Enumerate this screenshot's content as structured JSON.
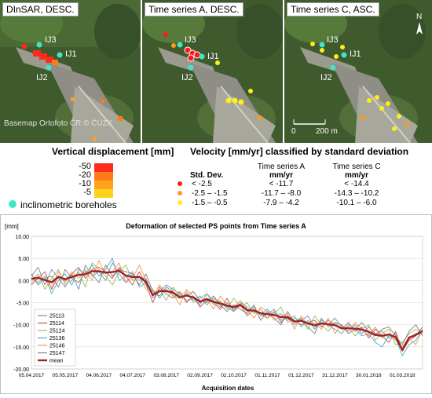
{
  "maps": [
    {
      "title": "DInSAR, DESC.",
      "boreholes": [
        "IJ3",
        "IJ1",
        "IJ2"
      ],
      "basemap": "Basemap Ortofoto ČR © ČÚZK"
    },
    {
      "title": "Time series A, DESC.",
      "boreholes": [
        "IJ3",
        "IJ1",
        "IJ2"
      ]
    },
    {
      "title": "Time series C, ASC.",
      "boreholes": [
        "IJ3",
        "IJ1",
        "IJ2"
      ],
      "scale_label": "200 m",
      "scale_zero": "0",
      "north": "N"
    }
  ],
  "vertical_legend": {
    "title": "Vertical displacement [mm]",
    "values": [
      "-50",
      "-20",
      "-10",
      "-5"
    ],
    "colors": [
      "#ff2a1a",
      "#ff7a1a",
      "#ffa31f",
      "#ffd21a"
    ],
    "borehole_label": "inclinometric boreholes",
    "borehole_color": "#3ee6c8"
  },
  "velocity_legend": {
    "title": "Velocity [mm/yr] classified by standard deviation",
    "col_std": "Std. Dev.",
    "col_a": "Time series A",
    "col_c": "Time series C",
    "unit_a": "mm/yr",
    "unit_c": "mm/yr",
    "rows": [
      {
        "color": "#ff1a1a",
        "std": "< -2.5",
        "a": "< -11.7",
        "c": "< -14.4"
      },
      {
        "color": "#ff9a1a",
        "std": "-2.5 – -1.5",
        "a": "-11.7 – -8.0",
        "c": "-14.3 – -10.2"
      },
      {
        "color": "#ffee1a",
        "std": "-1.5 – -0.5",
        "a": "-7.9 – -4.2",
        "c": "-10.1 – -6.0"
      }
    ]
  },
  "chart_data": {
    "type": "line",
    "title": "Deformation of selected PS points from Time series A",
    "ylabel": "[mm]",
    "xlabel": "Acquisition dates",
    "ylim": [
      -20,
      10
    ],
    "yticks": [
      "10.00",
      "5.00",
      "0.00",
      "-5.00",
      "-10.00",
      "-15.00",
      "-20.00"
    ],
    "xticks": [
      "05.04.2017",
      "05.05.2017",
      "04.06.2017",
      "04.07.2017",
      "03.08.2017",
      "02.09.2017",
      "02.10.2017",
      "01.11.2017",
      "01.12.2017",
      "31.12.2017",
      "30.01.2018",
      "01.03.2018"
    ],
    "x": [
      0,
      6,
      12,
      18,
      24,
      30,
      36,
      42,
      48,
      54,
      60,
      66,
      72,
      78,
      84,
      90,
      96,
      102,
      108,
      114,
      120,
      126,
      132,
      138,
      144,
      150,
      156,
      162,
      168,
      174,
      180,
      186,
      192,
      198,
      204,
      210,
      216,
      222,
      228,
      234,
      240,
      246,
      252,
      258,
      264,
      270,
      276,
      282,
      288,
      294,
      300,
      306,
      312,
      318,
      324,
      330,
      336,
      342,
      348
    ],
    "series": [
      {
        "name": "25113",
        "color": "#6f8fb8",
        "values": [
          1.0,
          3.0,
          -1.0,
          2.5,
          0.5,
          -1.5,
          1.5,
          -2.0,
          3.5,
          1.0,
          2.0,
          0.0,
          4.0,
          1.5,
          -0.5,
          1.5,
          0.0,
          0.5,
          -4.0,
          -2.5,
          -1.0,
          -2.0,
          -3.0,
          -4.5,
          -4.0,
          -5.5,
          -3.0,
          -4.5,
          -6.0,
          -5.0,
          -6.5,
          -5.5,
          -7.0,
          -6.0,
          -8.0,
          -7.5,
          -6.5,
          -9.0,
          -8.5,
          -10.0,
          -9.0,
          -8.0,
          -10.5,
          -9.5,
          -10.0,
          -8.5,
          -10.5,
          -11.5,
          -10.0,
          -12.0,
          -10.5,
          -12.0,
          -11.5,
          -13.0,
          -12.0,
          -15.5,
          -13.0,
          -12.0,
          -11.5
        ]
      },
      {
        "name": "25114",
        "color": "#c0504d",
        "values": [
          -1.0,
          0.5,
          2.0,
          -2.0,
          1.0,
          0.0,
          1.5,
          3.0,
          0.5,
          2.5,
          3.0,
          2.0,
          0.5,
          3.0,
          1.0,
          -1.0,
          2.0,
          -1.0,
          -5.0,
          -1.5,
          -3.0,
          -4.0,
          -2.5,
          -5.0,
          -3.5,
          -6.0,
          -4.5,
          -5.0,
          -6.5,
          -4.0,
          -7.0,
          -5.5,
          -8.0,
          -6.5,
          -7.5,
          -8.5,
          -7.0,
          -9.5,
          -8.0,
          -9.0,
          -10.0,
          -9.5,
          -9.0,
          -10.5,
          -9.0,
          -10.0,
          -11.0,
          -9.5,
          -11.5,
          -10.5,
          -13.0,
          -11.0,
          -12.5,
          -14.0,
          -11.5,
          -16.0,
          -13.5,
          -12.5,
          -10.5
        ]
      },
      {
        "name": "25124",
        "color": "#9bbb59",
        "values": [
          0.0,
          1.5,
          -2.0,
          0.5,
          2.5,
          -1.0,
          0.0,
          2.0,
          -1.5,
          4.0,
          2.5,
          1.0,
          -1.0,
          2.0,
          3.5,
          0.0,
          1.0,
          -2.0,
          -3.0,
          -2.0,
          -4.5,
          -1.5,
          -3.5,
          -2.5,
          -5.0,
          -4.0,
          -3.0,
          -5.5,
          -4.5,
          -6.5,
          -4.0,
          -6.0,
          -5.0,
          -7.5,
          -6.5,
          -8.5,
          -7.5,
          -6.0,
          -9.5,
          -8.5,
          -9.0,
          -11.0,
          -8.0,
          -10.0,
          -11.5,
          -9.5,
          -11.0,
          -10.5,
          -12.5,
          -11.0,
          -10.0,
          -13.5,
          -12.0,
          -11.0,
          -14.5,
          -14.0,
          -12.0,
          -11.0,
          -12.0
        ]
      },
      {
        "name": "25136",
        "color": "#4bacc6",
        "values": [
          0.5,
          -0.5,
          1.0,
          -3.0,
          0.0,
          1.5,
          -1.0,
          2.5,
          1.5,
          3.5,
          1.0,
          2.5,
          5.0,
          0.0,
          1.0,
          2.0,
          -1.5,
          -0.5,
          -2.0,
          -4.0,
          -2.0,
          -3.5,
          -4.0,
          -3.0,
          -4.5,
          -3.5,
          -5.5,
          -4.0,
          -5.0,
          -6.0,
          -7.0,
          -5.0,
          -6.0,
          -7.0,
          -7.5,
          -6.5,
          -8.0,
          -7.5,
          -9.0,
          -8.0,
          -10.5,
          -9.0,
          -11.0,
          -9.0,
          -10.0,
          -11.0,
          -12.0,
          -10.0,
          -11.0,
          -12.5,
          -12.0,
          -14.0,
          -15.0,
          -12.5,
          -13.0,
          -17.0,
          -14.5,
          -13.5,
          -11.0
        ]
      },
      {
        "name": "25146",
        "color": "#f79646",
        "values": [
          -0.5,
          1.0,
          0.0,
          -1.5,
          2.0,
          -0.5,
          2.0,
          0.5,
          2.5,
          0.0,
          4.5,
          1.5,
          2.0,
          4.0,
          -0.5,
          0.5,
          3.5,
          0.0,
          -3.5,
          -1.0,
          -2.5,
          -3.0,
          -5.5,
          -2.0,
          -3.5,
          -5.0,
          -4.0,
          -6.5,
          -3.5,
          -5.5,
          -6.0,
          -4.5,
          -6.5,
          -8.5,
          -6.0,
          -7.0,
          -9.0,
          -8.0,
          -7.5,
          -11.0,
          -8.0,
          -10.0,
          -9.5,
          -11.0,
          -8.5,
          -12.0,
          -10.0,
          -11.5,
          -9.5,
          -11.0,
          -12.5,
          -10.5,
          -13.0,
          -12.0,
          -13.5,
          -15.0,
          -13.0,
          -14.5,
          -11.0
        ]
      },
      {
        "name": "25147",
        "color": "#7f7f7f",
        "values": [
          1.5,
          -1.0,
          0.5,
          1.0,
          -1.5,
          2.5,
          0.5,
          -0.5,
          2.0,
          1.5,
          -0.5,
          3.5,
          1.0,
          2.5,
          2.0,
          1.5,
          -1.0,
          1.5,
          -2.5,
          -3.5,
          -1.5,
          -2.5,
          -4.0,
          -3.5,
          -2.5,
          -4.5,
          -5.0,
          -3.5,
          -5.5,
          -7.0,
          -5.5,
          -6.5,
          -7.5,
          -5.5,
          -9.0,
          -7.0,
          -8.5,
          -10.0,
          -7.0,
          -9.5,
          -8.5,
          -10.5,
          -12.0,
          -8.5,
          -10.5,
          -9.5,
          -10.0,
          -12.0,
          -11.0,
          -9.5,
          -11.5,
          -12.5,
          -11.0,
          -10.5,
          -12.5,
          -14.5,
          -11.5,
          -10.0,
          -12.5
        ]
      },
      {
        "name": "mean",
        "color": "#a32020",
        "values": [
          0.4,
          0.6,
          0.1,
          -0.4,
          0.8,
          0.3,
          0.8,
          1.3,
          1.4,
          2.1,
          2.1,
          1.8,
          1.9,
          2.2,
          1.1,
          0.8,
          0.8,
          -0.3,
          -3.3,
          -2.4,
          -2.4,
          -2.7,
          -3.8,
          -3.4,
          -3.8,
          -4.8,
          -4.2,
          -4.8,
          -5.2,
          -5.7,
          -6.0,
          -5.5,
          -6.7,
          -6.8,
          -7.4,
          -7.6,
          -7.8,
          -8.3,
          -8.3,
          -9.3,
          -9.1,
          -9.7,
          -10.1,
          -9.7,
          -9.9,
          -10.1,
          -10.8,
          -10.8,
          -10.9,
          -11.1,
          -11.6,
          -12.3,
          -12.5,
          -12.2,
          -12.8,
          -15.7,
          -12.9,
          -12.3,
          -11.4
        ]
      }
    ]
  }
}
